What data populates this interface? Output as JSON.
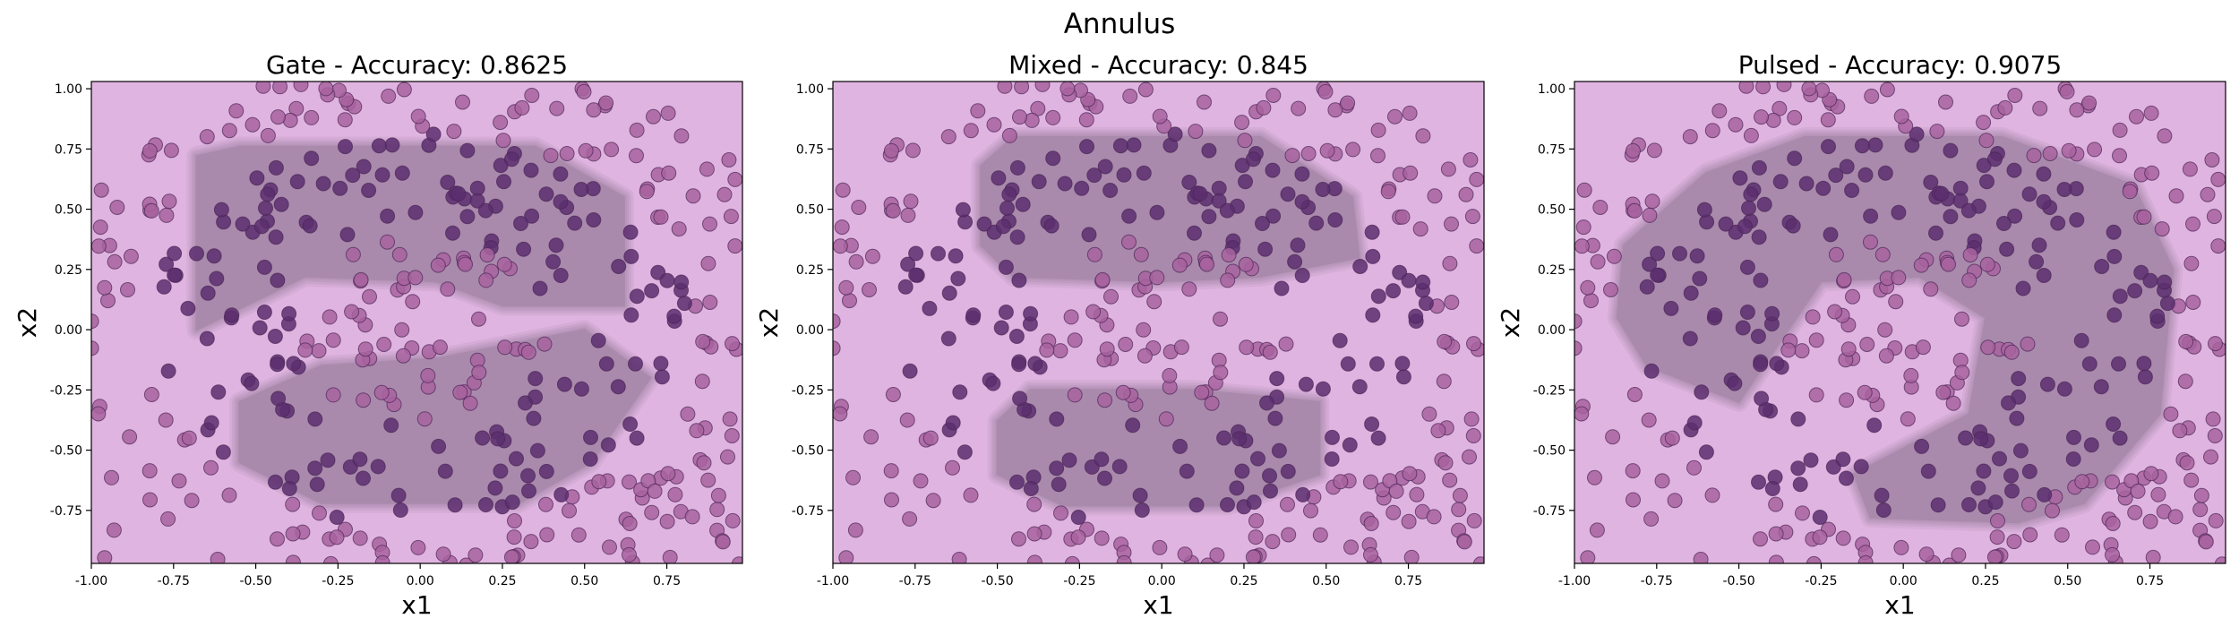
{
  "figure": {
    "suptitle": "Annulus",
    "colors": {
      "background_class": "#e0b4e0",
      "region_class": "#a98aac",
      "point_light": "#a8639f",
      "point_dark": "#5c2e6e",
      "point_edge": "#4a2555"
    }
  },
  "chart_data": [
    {
      "type": "scatter",
      "title": "Gate - Accuracy: 0.8625",
      "xlabel": "x1",
      "ylabel": "x2",
      "xlim": [
        -1.0,
        0.98
      ],
      "ylim": [
        -0.97,
        1.03
      ],
      "xticks": [
        "-1.00",
        "-0.75",
        "-0.50",
        "-0.25",
        "0.00",
        "0.25",
        "0.50",
        "0.75"
      ],
      "yticks": [
        "-0.75",
        "-0.50",
        "-0.25",
        "0.00",
        "0.25",
        "0.50",
        "0.75",
        "1.00"
      ],
      "decision_regions": [
        [
          [
            -0.68,
            0.72
          ],
          [
            -0.55,
            0.76
          ],
          [
            0.35,
            0.76
          ],
          [
            0.62,
            0.55
          ],
          [
            0.62,
            0.1
          ],
          [
            0.25,
            0.1
          ],
          [
            0.05,
            0.2
          ],
          [
            -0.35,
            0.22
          ],
          [
            -0.68,
            0.0
          ]
        ],
        [
          [
            -0.55,
            -0.3
          ],
          [
            -0.3,
            -0.15
          ],
          [
            0.05,
            -0.12
          ],
          [
            0.5,
            0.0
          ],
          [
            0.7,
            -0.2
          ],
          [
            0.52,
            -0.55
          ],
          [
            0.3,
            -0.72
          ],
          [
            -0.3,
            -0.72
          ],
          [
            -0.55,
            -0.55
          ]
        ]
      ]
    },
    {
      "type": "scatter",
      "title": "Mixed - Accuracy: 0.845",
      "xlabel": "x1",
      "ylabel": "x2",
      "xlim": [
        -1.0,
        0.98
      ],
      "ylim": [
        -0.97,
        1.03
      ],
      "xticks": [
        "-1.00",
        "-0.75",
        "-0.50",
        "-0.25",
        "0.00",
        "0.25",
        "0.50",
        "0.75"
      ],
      "yticks": [
        "-0.75",
        "-0.50",
        "-0.25",
        "0.00",
        "0.25",
        "0.50",
        "0.75",
        "1.00"
      ],
      "decision_regions": [
        [
          [
            -0.55,
            0.68
          ],
          [
            -0.45,
            0.8
          ],
          [
            0.3,
            0.8
          ],
          [
            0.58,
            0.55
          ],
          [
            0.6,
            0.3
          ],
          [
            0.3,
            0.22
          ],
          [
            0.0,
            0.2
          ],
          [
            -0.45,
            0.22
          ],
          [
            -0.55,
            0.35
          ]
        ],
        [
          [
            -0.5,
            -0.38
          ],
          [
            -0.4,
            -0.25
          ],
          [
            0.1,
            -0.25
          ],
          [
            0.48,
            -0.3
          ],
          [
            0.48,
            -0.6
          ],
          [
            0.2,
            -0.73
          ],
          [
            -0.3,
            -0.73
          ],
          [
            -0.5,
            -0.6
          ]
        ]
      ]
    },
    {
      "type": "scatter",
      "title": "Pulsed - Accuracy: 0.9075",
      "xlabel": "x1",
      "ylabel": "x2",
      "xlim": [
        -1.0,
        0.98
      ],
      "ylim": [
        -0.97,
        1.03
      ],
      "xticks": [
        "-1.00",
        "-0.75",
        "-0.50",
        "-0.25",
        "0.00",
        "0.25",
        "0.50",
        "0.75"
      ],
      "yticks": [
        "-0.75",
        "-0.50",
        "-0.25",
        "0.00",
        "0.25",
        "0.50",
        "0.75",
        "1.00"
      ],
      "decision_regions": [
        [
          [
            -0.85,
            0.35
          ],
          [
            -0.6,
            0.65
          ],
          [
            -0.3,
            0.8
          ],
          [
            0.3,
            0.8
          ],
          [
            0.7,
            0.6
          ],
          [
            0.82,
            0.25
          ],
          [
            0.78,
            -0.35
          ],
          [
            0.55,
            -0.72
          ],
          [
            0.35,
            -0.8
          ],
          [
            -0.1,
            -0.78
          ],
          [
            -0.15,
            -0.6
          ],
          [
            0.2,
            -0.35
          ],
          [
            0.25,
            0.05
          ],
          [
            0.05,
            0.22
          ],
          [
            -0.25,
            0.2
          ],
          [
            -0.5,
            -0.3
          ],
          [
            -0.78,
            -0.15
          ],
          [
            -0.87,
            0.05
          ]
        ]
      ]
    }
  ]
}
